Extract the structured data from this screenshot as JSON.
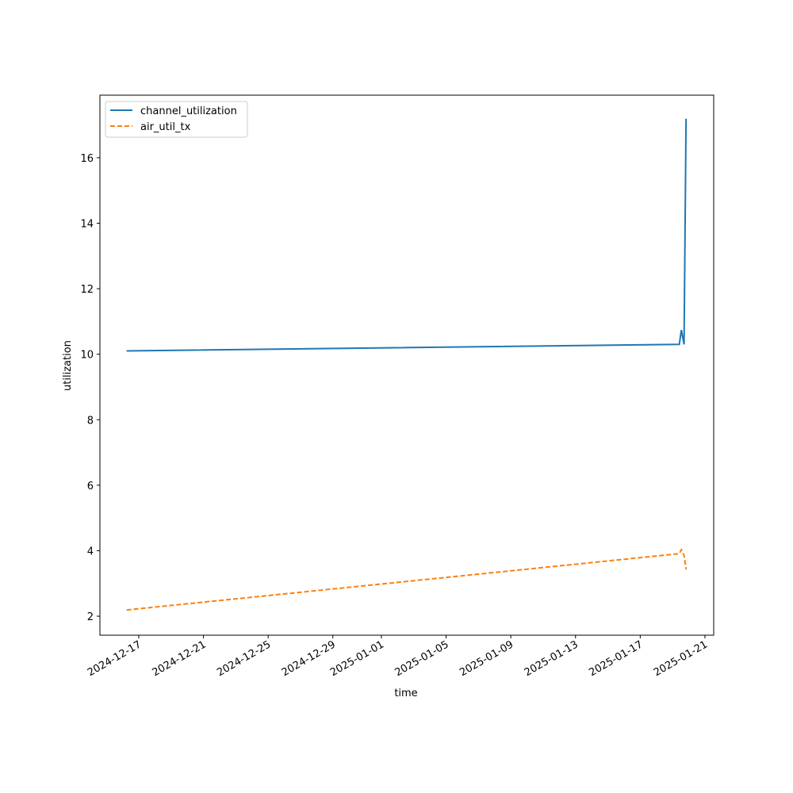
{
  "chart_data": {
    "type": "line",
    "x_label": "time",
    "y_label": "utilization",
    "x": [
      "2024-12-16T06:00",
      "2025-01-19T10:00",
      "2025-01-19T13:00",
      "2025-01-19T17:00",
      "2025-01-19T20:00"
    ],
    "series": [
      {
        "name": "channel_utilization",
        "color": "#1f77b4",
        "dash": "solid",
        "values": [
          10.1,
          10.3,
          10.74,
          10.3,
          17.19
        ]
      },
      {
        "name": "air_util_tx",
        "color": "#ff7f0e",
        "dash": "dashed",
        "values": [
          2.19,
          3.91,
          4.03,
          3.86,
          3.43
        ]
      }
    ],
    "xlim": [
      "2024-12-14T14:24",
      "2025-01-21T13:00"
    ],
    "xticks": [
      "2024-12-17",
      "2024-12-21",
      "2024-12-25",
      "2024-12-29",
      "2025-01-01",
      "2025-01-05",
      "2025-01-09",
      "2025-01-13",
      "2025-01-17",
      "2025-01-21"
    ],
    "ylim": [
      1.42,
      17.91
    ],
    "yticks": [
      2,
      4,
      6,
      8,
      10,
      12,
      14,
      16
    ],
    "grid": false,
    "legend": "upper left"
  }
}
